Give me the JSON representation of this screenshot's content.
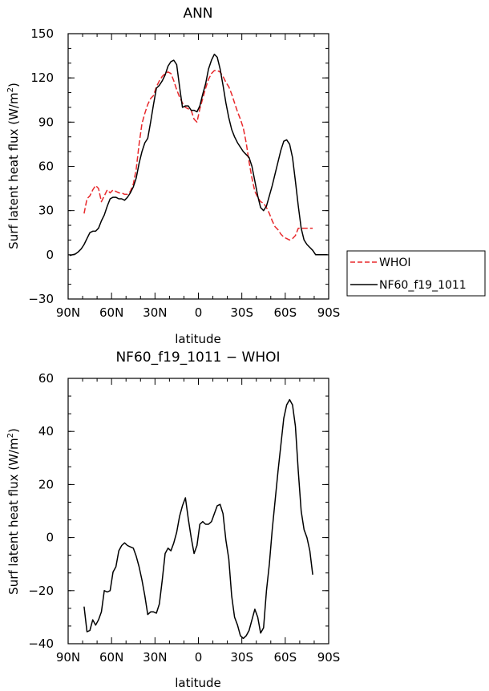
{
  "chart_data": [
    {
      "type": "line",
      "title": "ANN",
      "xlabel": "latitude",
      "ylabel": "Surf latent heat flux (W/m²)",
      "ylabel_parts": {
        "text": "Surf latent heat flux (W/m",
        "sup": "2",
        "close": ")"
      },
      "xlim": [
        90,
        -90
      ],
      "ylim": [
        -30,
        150
      ],
      "xticks": [
        90,
        60,
        30,
        0,
        -30,
        -60,
        -90
      ],
      "xtick_labels": [
        "90N",
        "60N",
        "30N",
        "0",
        "30S",
        "60S",
        "90S"
      ],
      "yticks": [
        -30,
        0,
        30,
        60,
        90,
        120,
        150
      ],
      "ytick_labels": [
        "−30",
        "0",
        "30",
        "60",
        "90",
        "120",
        "150"
      ],
      "legend_position": "outside-right",
      "series": [
        {
          "name": "WHOI",
          "color": "#e8282b",
          "dash": "dashed",
          "x": [
            79,
            77,
            75,
            73,
            71,
            69,
            67,
            65,
            63,
            61,
            59,
            57,
            55,
            53,
            51,
            49,
            47,
            45,
            43,
            41,
            39,
            37,
            35,
            33,
            31,
            29,
            27,
            25,
            23,
            21,
            19,
            17,
            15,
            13,
            11,
            9,
            7,
            5,
            3,
            1,
            -1,
            -3,
            -5,
            -7,
            -9,
            -11,
            -13,
            -15,
            -17,
            -19,
            -21,
            -23,
            -25,
            -27,
            -29,
            -31,
            -33,
            -35,
            -37,
            -39,
            -41,
            -43,
            -45,
            -47,
            -49,
            -51,
            -53,
            -55,
            -57,
            -59,
            -61,
            -63,
            -65,
            -67,
            -69,
            -71,
            -73,
            -75,
            -77,
            -79
          ],
          "values": [
            28,
            38,
            40,
            44,
            47,
            45,
            36,
            40,
            44,
            42,
            44,
            43,
            42,
            42,
            41,
            41,
            43,
            48,
            58,
            75,
            89,
            96,
            102,
            106,
            108,
            114,
            118,
            121,
            123,
            124,
            123,
            118,
            112,
            107,
            103,
            100,
            99,
            98,
            92,
            90,
            99,
            106,
            113,
            119,
            123,
            125,
            125,
            124,
            121,
            117,
            114,
            109,
            103,
            97,
            92,
            86,
            76,
            63,
            52,
            43,
            39,
            36,
            35,
            32,
            28,
            23,
            19,
            17,
            14,
            12,
            11,
            10,
            11,
            13,
            18,
            18,
            18,
            18,
            18,
            18
          ]
        },
        {
          "name": "NF60_f19_1011",
          "color": "#000000",
          "dash": "solid",
          "x": [
            89,
            87,
            85,
            83,
            81,
            79,
            77,
            75,
            73,
            71,
            69,
            67,
            65,
            63,
            61,
            59,
            57,
            55,
            53,
            51,
            49,
            47,
            45,
            43,
            41,
            39,
            37,
            35,
            33,
            31,
            29,
            27,
            25,
            23,
            21,
            19,
            17,
            15,
            13,
            11,
            9,
            7,
            5,
            3,
            1,
            -1,
            -3,
            -5,
            -7,
            -9,
            -11,
            -13,
            -15,
            -17,
            -19,
            -21,
            -23,
            -25,
            -27,
            -29,
            -31,
            -33,
            -35,
            -37,
            -39,
            -41,
            -43,
            -45,
            -47,
            -49,
            -51,
            -53,
            -55,
            -57,
            -59,
            -61,
            -63,
            -65,
            -67,
            -69,
            -71,
            -73,
            -75,
            -77,
            -79,
            -81,
            -83,
            -85,
            -87,
            -89
          ],
          "values": [
            -0.5,
            0,
            0.5,
            2,
            4,
            7,
            11,
            15,
            16,
            16,
            18,
            23,
            27,
            33,
            38,
            39,
            39,
            38,
            38,
            37,
            39,
            42,
            46,
            52,
            62,
            70,
            76,
            79,
            90,
            102,
            113,
            115,
            118,
            122,
            128,
            131,
            132,
            129,
            114,
            100,
            101,
            101,
            98,
            98,
            97,
            101,
            109,
            116,
            126,
            132,
            136,
            134,
            126,
            115,
            103,
            93,
            85,
            80,
            76,
            73,
            70,
            68,
            66,
            60,
            50,
            40,
            32,
            30,
            33,
            40,
            47,
            55,
            63,
            71,
            77,
            78,
            75,
            66,
            50,
            33,
            18,
            10,
            7,
            5,
            3,
            0,
            0,
            0,
            0,
            0
          ]
        }
      ]
    },
    {
      "type": "line",
      "title": "NF60_f19_1011 − WHOI",
      "xlabel": "latitude",
      "ylabel": "Surf latent heat flux (W/m²)",
      "ylabel_parts": {
        "text": "Surf latent heat flux (W/m",
        "sup": "2",
        "close": ")"
      },
      "xlim": [
        90,
        -90
      ],
      "ylim": [
        -40,
        60
      ],
      "xticks": [
        90,
        60,
        30,
        0,
        -30,
        -60,
        -90
      ],
      "xtick_labels": [
        "90N",
        "60N",
        "30N",
        "0",
        "30S",
        "60S",
        "90S"
      ],
      "yticks": [
        -40,
        -20,
        0,
        20,
        40,
        60
      ],
      "ytick_labels": [
        "−40",
        "−20",
        "0",
        "20",
        "40",
        "60"
      ],
      "series": [
        {
          "color": "#000000",
          "dash": "solid",
          "x": [
            79,
            77,
            75,
            73,
            71,
            69,
            67,
            65,
            63,
            61,
            59,
            57,
            55,
            53,
            51,
            49,
            47,
            45,
            43,
            41,
            39,
            37,
            35,
            33,
            31,
            29,
            27,
            25,
            23,
            21,
            19,
            17,
            15,
            13,
            11,
            9,
            7,
            5,
            3,
            1,
            -1,
            -3,
            -5,
            -7,
            -9,
            -11,
            -13,
            -15,
            -17,
            -19,
            -21,
            -23,
            -25,
            -27,
            -29,
            -31,
            -33,
            -35,
            -37,
            -39,
            -41,
            -43,
            -45,
            -47,
            -49,
            -51,
            -53,
            -55,
            -57,
            -59,
            -61,
            -63,
            -65,
            -67,
            -69,
            -71,
            -73,
            -75,
            -77,
            -79
          ],
          "values": [
            -26,
            -35.5,
            -35,
            -31,
            -33,
            -31,
            -28,
            -20,
            -20.5,
            -20,
            -13,
            -11,
            -5,
            -3,
            -2,
            -3,
            -3.5,
            -4,
            -7,
            -11,
            -16,
            -22,
            -29,
            -28,
            -28,
            -28.5,
            -25,
            -16,
            -6,
            -4,
            -5,
            -2,
            2,
            8,
            12,
            15,
            7,
            0,
            -6,
            -3,
            5,
            6,
            5,
            5,
            6,
            9,
            12,
            12.5,
            9,
            -1,
            -8,
            -22,
            -30,
            -33,
            -37,
            -38,
            -37,
            -35,
            -31,
            -27,
            -30,
            -36,
            -34,
            -20,
            -10,
            3,
            14,
            25,
            35,
            45,
            50,
            52,
            50,
            42,
            25,
            10,
            3,
            0,
            -5,
            -14
          ]
        }
      ]
    }
  ]
}
